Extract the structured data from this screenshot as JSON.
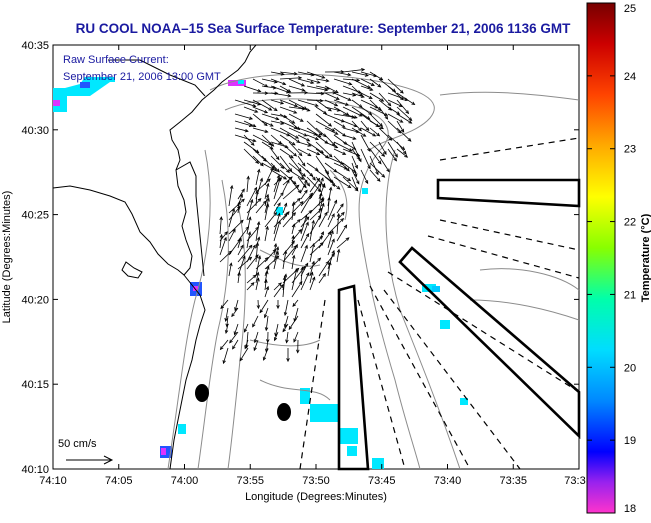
{
  "title": "RU COOL  NOAA–15  Sea Surface Temperature:  September 21, 2006 1136 GMT",
  "current_label_line1": "Raw Surface Current:",
  "current_label_line2": "September 21, 2006 13:00 GMT",
  "scale_arrow_label": "50 cm/s",
  "xlabel": "Longitude (Degrees:Minutes)",
  "ylabel": "Latitude (Degrees:Minutes)",
  "x_ticks": [
    "74:10",
    "74:05",
    "74:00",
    "73:55",
    "73:50",
    "73:45",
    "73:40",
    "73:35",
    "73:3"
  ],
  "y_ticks": [
    "40:35",
    "40:30",
    "40:25",
    "40:20",
    "40:15",
    "40:10"
  ],
  "colorbar": {
    "label": "Temperature (°C)",
    "ticks": [
      "25",
      "24",
      "23",
      "22",
      "21",
      "20",
      "19",
      "18"
    ],
    "range": [
      18,
      25
    ],
    "colors": [
      "#ff33cc",
      "#9922ee",
      "#0000ff",
      "#0088ff",
      "#00ddff",
      "#00ffaa",
      "#88ff00",
      "#ffff00",
      "#ffaa00",
      "#ff4400",
      "#cc0000",
      "#770000"
    ]
  },
  "colors": {
    "title": "#1a1aa0",
    "label_blue": "#1a1aa0",
    "sst_cyan": "#00e8ff",
    "sst_magenta": "#dd33ff",
    "sst_blue": "#2255ff"
  }
}
